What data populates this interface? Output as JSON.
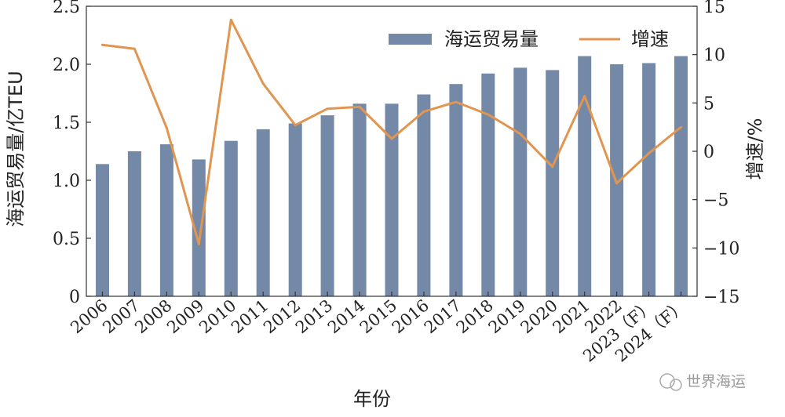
{
  "chart_data": {
    "type": "bar+line",
    "categories": [
      "2006",
      "2007",
      "2008",
      "2009",
      "2010",
      "2011",
      "2012",
      "2013",
      "2014",
      "2015",
      "2016",
      "2017",
      "2018",
      "2019",
      "2020",
      "2021",
      "2022",
      "2023（F）",
      "2024（F）"
    ],
    "series": [
      {
        "name": "海运贸易量",
        "type": "bar",
        "axis": "left",
        "values": [
          1.14,
          1.25,
          1.31,
          1.18,
          1.34,
          1.44,
          1.49,
          1.56,
          1.66,
          1.66,
          1.74,
          1.83,
          1.92,
          1.97,
          1.95,
          2.07,
          2.0,
          2.01,
          2.07
        ]
      },
      {
        "name": "增速",
        "type": "line",
        "axis": "right",
        "values": [
          11.0,
          10.6,
          2.4,
          -9.6,
          13.6,
          7.0,
          2.7,
          4.4,
          4.6,
          1.3,
          4.1,
          5.1,
          3.8,
          1.8,
          -1.6,
          5.7,
          -3.3,
          -0.2,
          2.5
        ]
      }
    ],
    "xlabel": "年份",
    "ylabel_left": "海运贸易量/亿TEU",
    "ylabel_right": "增速/%",
    "ylim_left": [
      0,
      2.5
    ],
    "ylim_right": [
      -15,
      15
    ],
    "yticks_left": [
      "0",
      "0.5",
      "1.0",
      "1.5",
      "2.0",
      "2.5"
    ],
    "yticks_right": [
      "−15",
      "−10",
      "−5",
      "0",
      "5",
      "10",
      "15"
    ],
    "legend_position": "top-right",
    "grid": false,
    "colors": {
      "bar": "#7488a8",
      "line": "#e09650"
    }
  },
  "watermark": {
    "text": "世界海运"
  }
}
